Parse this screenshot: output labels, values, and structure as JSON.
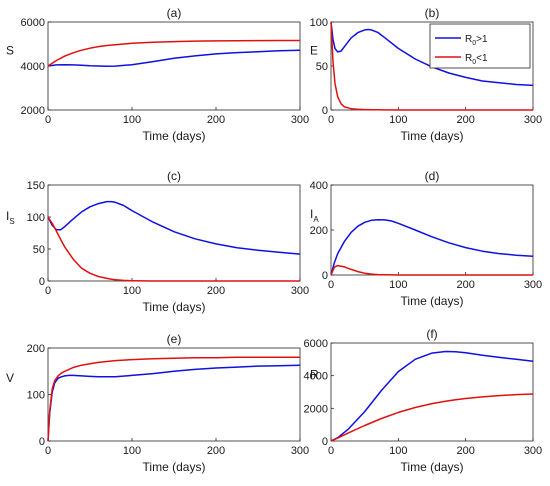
{
  "colors": {
    "series_blue": "#1010e0",
    "series_red": "#e01010",
    "axis": "#262626"
  },
  "legend": {
    "entries": [
      {
        "series": "R0>1",
        "prefix": "R",
        "sub": "0",
        "suffix": ">1",
        "color_key": "series_blue"
      },
      {
        "series": "R0<1",
        "prefix": "R",
        "sub": "0",
        "suffix": "<1",
        "color_key": "series_red"
      }
    ],
    "placement": "top-right of panel (b)"
  },
  "chart_data": [
    {
      "type": "line",
      "title": "(a)",
      "ylabel": "S",
      "ylabel_sub": "",
      "xlabel": "Time (days)",
      "xlim": [
        0,
        300
      ],
      "ylim": [
        2000,
        6000
      ],
      "xticks": [
        0,
        100,
        200,
        300
      ],
      "yticks": [
        2000,
        4000,
        6000
      ],
      "x": [
        0,
        10,
        20,
        30,
        40,
        50,
        60,
        70,
        80,
        100,
        125,
        150,
        175,
        200,
        225,
        250,
        275,
        300
      ],
      "series": [
        {
          "name": "R0>1",
          "color_key": "series_blue",
          "values": [
            4000,
            4050,
            4060,
            4050,
            4030,
            4010,
            4000,
            3990,
            3995,
            4060,
            4200,
            4350,
            4460,
            4550,
            4610,
            4650,
            4690,
            4720
          ]
        },
        {
          "name": "R0<1",
          "color_key": "series_red",
          "values": [
            4000,
            4250,
            4450,
            4600,
            4720,
            4810,
            4880,
            4930,
            4970,
            5030,
            5080,
            5110,
            5130,
            5140,
            5150,
            5155,
            5158,
            5160
          ]
        }
      ]
    },
    {
      "type": "line",
      "title": "(b)",
      "ylabel": "E",
      "ylabel_sub": "",
      "xlabel": "Time (days)",
      "xlim": [
        0,
        300
      ],
      "ylim": [
        0,
        100
      ],
      "xticks": [
        0,
        100,
        200,
        300
      ],
      "yticks": [
        0,
        50,
        100
      ],
      "x": [
        0,
        3,
        6,
        10,
        15,
        20,
        30,
        40,
        50,
        55,
        60,
        70,
        80,
        100,
        125,
        150,
        175,
        200,
        225,
        250,
        275,
        300
      ],
      "series": [
        {
          "name": "R0>1",
          "color_key": "series_blue",
          "values": [
            100,
            80,
            70,
            66,
            67,
            72,
            82,
            88,
            91,
            91.5,
            91,
            88,
            82,
            70,
            58,
            49,
            42,
            37,
            33,
            31,
            29,
            28
          ]
        },
        {
          "name": "R0<1",
          "color_key": "series_red",
          "values": [
            100,
            55,
            30,
            15,
            7,
            3.5,
            1.5,
            0.8,
            0.5,
            0.4,
            0.3,
            0.2,
            0.1,
            0,
            0,
            0,
            0,
            0,
            0,
            0,
            0,
            0
          ]
        }
      ]
    },
    {
      "type": "line",
      "title": "(c)",
      "ylabel": "I",
      "ylabel_sub": "S",
      "xlabel": "Time (days)",
      "xlim": [
        0,
        300
      ],
      "ylim": [
        0,
        150
      ],
      "xticks": [
        0,
        100,
        200,
        300
      ],
      "yticks": [
        0,
        50,
        100,
        150
      ],
      "x": [
        0,
        5,
        10,
        15,
        20,
        30,
        40,
        50,
        60,
        70,
        75,
        80,
        90,
        100,
        125,
        150,
        175,
        200,
        225,
        250,
        275,
        300
      ],
      "series": [
        {
          "name": "R0>1",
          "color_key": "series_blue",
          "values": [
            100,
            87,
            80,
            80,
            85,
            97,
            108,
            116,
            121,
            124,
            124,
            123,
            118,
            110,
            92,
            77,
            66,
            58,
            52,
            48,
            45,
            42
          ]
        },
        {
          "name": "R0<1",
          "color_key": "series_red",
          "values": [
            100,
            90,
            78,
            65,
            53,
            34,
            20,
            12,
            7,
            4,
            3,
            2,
            1,
            0.5,
            0,
            0,
            0,
            0,
            0,
            0,
            0,
            0
          ]
        }
      ]
    },
    {
      "type": "line",
      "title": "(d)",
      "ylabel": "I",
      "ylabel_sub": "A",
      "xlabel": "Time (days)",
      "xlim": [
        0,
        300
      ],
      "ylim": [
        0,
        400
      ],
      "xticks": [
        0,
        100,
        200,
        300
      ],
      "yticks": [
        0,
        200,
        400
      ],
      "x": [
        0,
        5,
        10,
        20,
        30,
        40,
        50,
        60,
        70,
        80,
        90,
        100,
        125,
        150,
        175,
        200,
        225,
        250,
        275,
        300
      ],
      "series": [
        {
          "name": "R0>1",
          "color_key": "series_blue",
          "values": [
            0,
            55,
            95,
            150,
            190,
            217,
            234,
            243,
            246,
            245,
            240,
            230,
            200,
            170,
            143,
            122,
            106,
            95,
            88,
            83
          ]
        },
        {
          "name": "R0<1",
          "color_key": "series_red",
          "values": [
            0,
            35,
            42,
            36,
            25,
            15,
            8,
            4,
            2,
            1,
            0.5,
            0,
            0,
            0,
            0,
            0,
            0,
            0,
            0,
            0
          ]
        }
      ]
    },
    {
      "type": "line",
      "title": "(e)",
      "ylabel": "V",
      "ylabel_sub": "",
      "xlabel": "Time (days)",
      "xlim": [
        0,
        300
      ],
      "ylim": [
        0,
        200
      ],
      "xticks": [
        0,
        100,
        200,
        300
      ],
      "yticks": [
        0,
        100,
        200
      ],
      "x": [
        0,
        2,
        5,
        8,
        12,
        16,
        20,
        25,
        30,
        40,
        50,
        60,
        70,
        80,
        100,
        125,
        150,
        175,
        200,
        225,
        250,
        275,
        300
      ],
      "series": [
        {
          "name": "R0>1",
          "color_key": "series_blue",
          "values": [
            0,
            60,
            105,
            125,
            135,
            138,
            140,
            141,
            141,
            140,
            139,
            138,
            138,
            138,
            141,
            145,
            150,
            154,
            157,
            159,
            161,
            162,
            163
          ]
        },
        {
          "name": "R0<1",
          "color_key": "series_red",
          "values": [
            0,
            65,
            112,
            130,
            140,
            146,
            150,
            154,
            158,
            163,
            166,
            169,
            171,
            173,
            175,
            177,
            178,
            179,
            179,
            180,
            180,
            180,
            180
          ]
        }
      ]
    },
    {
      "type": "line",
      "title": "(f)",
      "ylabel": "R",
      "ylabel_sub": "",
      "xlabel": "Time (days)",
      "xlim": [
        0,
        300
      ],
      "ylim": [
        0,
        6000
      ],
      "xticks": [
        0,
        100,
        200,
        300
      ],
      "yticks": [
        0,
        2000,
        4000,
        6000
      ],
      "x": [
        0,
        10,
        25,
        50,
        75,
        100,
        125,
        150,
        170,
        185,
        200,
        225,
        250,
        275,
        300
      ],
      "series": [
        {
          "name": "R0>1",
          "color_key": "series_blue",
          "values": [
            0,
            200,
            700,
            1800,
            3100,
            4250,
            5000,
            5380,
            5480,
            5470,
            5400,
            5250,
            5120,
            5000,
            4880
          ]
        },
        {
          "name": "R0<1",
          "color_key": "series_red",
          "values": [
            0,
            180,
            480,
            950,
            1380,
            1750,
            2050,
            2290,
            2430,
            2520,
            2600,
            2700,
            2780,
            2840,
            2880
          ]
        }
      ]
    }
  ]
}
